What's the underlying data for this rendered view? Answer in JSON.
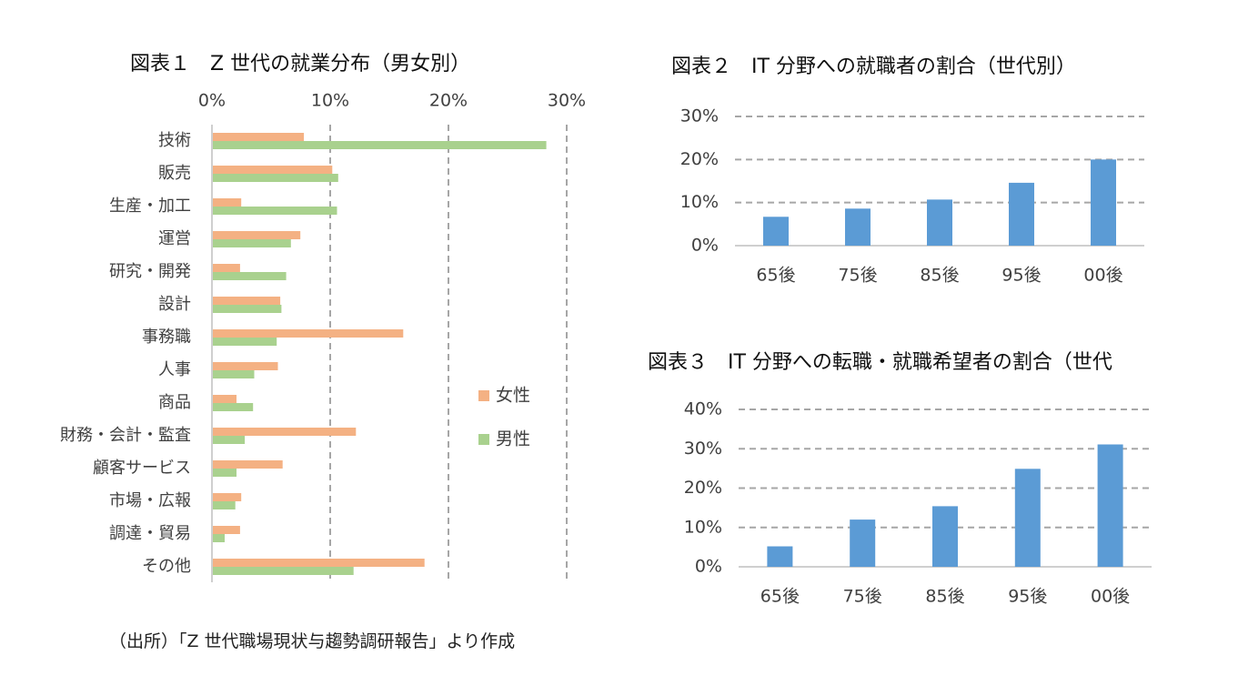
{
  "source_note": "（出所）「Z 世代職場現状与趨勢調研報告」より作成",
  "chart_data": [
    {
      "type": "bar",
      "orientation": "horizontal",
      "title": "図表１　Z 世代の就業分布（男女別）",
      "categories": [
        "技術",
        "販売",
        "生産・加工",
        "運営",
        "研究・開発",
        "設計",
        "事務職",
        "人事",
        "商品",
        "財務・会計・監査",
        "顧客サービス",
        "市場・広報",
        "調達・貿易",
        "その他"
      ],
      "series": [
        {
          "name": "女性",
          "color": "#F4B183",
          "values": [
            7.7,
            10.1,
            2.4,
            7.4,
            2.3,
            5.7,
            16.1,
            5.5,
            2.0,
            12.1,
            5.9,
            2.4,
            2.3,
            17.9
          ]
        },
        {
          "name": "男性",
          "color": "#A9D18E",
          "values": [
            28.2,
            10.6,
            10.5,
            6.6,
            6.2,
            5.8,
            5.4,
            3.5,
            3.4,
            2.7,
            2.0,
            1.9,
            1.0,
            11.9
          ]
        }
      ],
      "xlim": [
        0,
        30
      ],
      "x_ticks": [
        "0%",
        "10%",
        "20%",
        "30%"
      ],
      "legend_position": "right",
      "grid": true
    },
    {
      "type": "bar",
      "title": "図表２　IT 分野への就職者の割合（世代別）",
      "categories": [
        "65後",
        "75後",
        "85後",
        "95後",
        "00後"
      ],
      "series": [
        {
          "color": "#5B9BD5",
          "values": [
            6.7,
            8.6,
            10.7,
            14.6,
            20.0
          ]
        }
      ],
      "ylim": [
        0,
        30
      ],
      "y_ticks": [
        "0%",
        "10%",
        "20%",
        "30%"
      ],
      "grid": true
    },
    {
      "type": "bar",
      "title": "図表３　IT 分野への転職・就職希望者の割合（世代",
      "categories": [
        "65後",
        "75後",
        "85後",
        "95後",
        "00後"
      ],
      "series": [
        {
          "color": "#5B9BD5",
          "values": [
            5.2,
            12.0,
            15.4,
            24.9,
            31.1
          ]
        }
      ],
      "ylim": [
        0,
        40
      ],
      "y_ticks": [
        "0%",
        "10%",
        "20%",
        "30%",
        "40%"
      ],
      "grid": true
    }
  ]
}
